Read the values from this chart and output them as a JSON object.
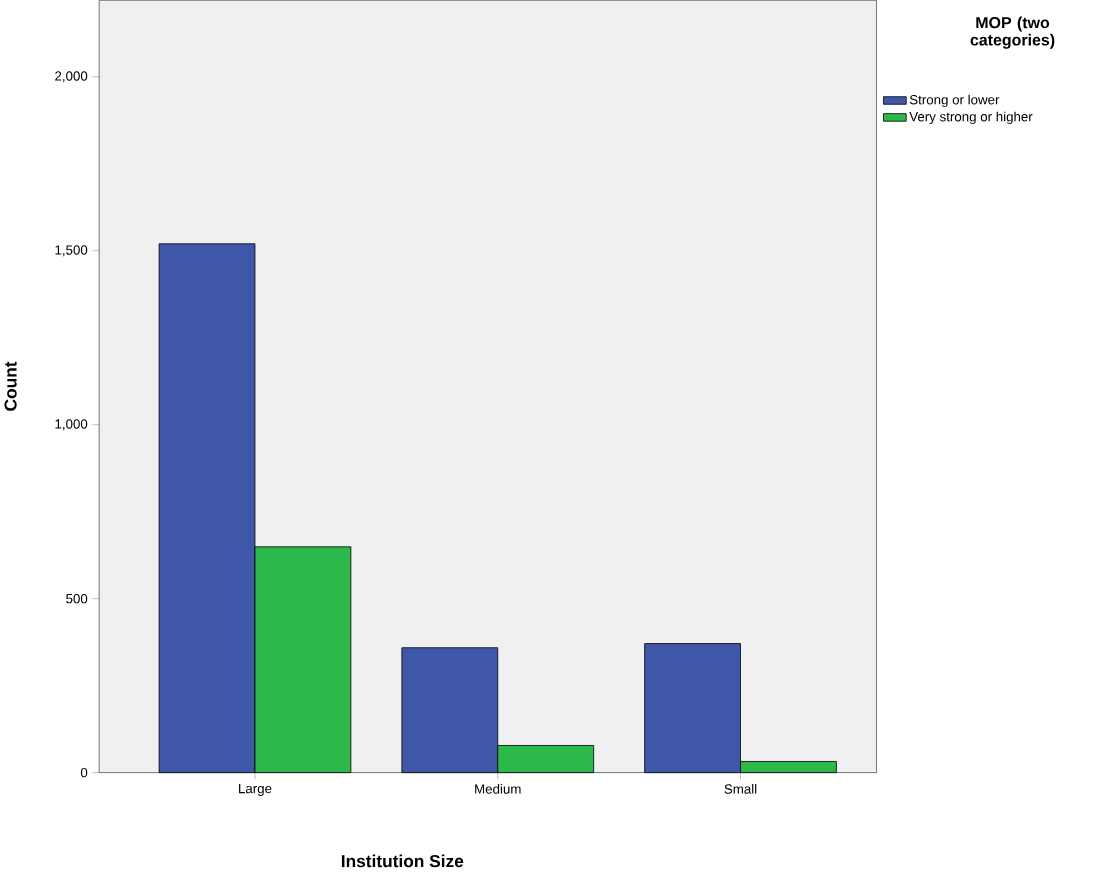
{
  "chart_data": {
    "type": "bar",
    "xlabel": "Institution Size",
    "ylabel": "Count",
    "legend_title": "MOP (two categories)",
    "categories": [
      "Large",
      "Medium",
      "Small"
    ],
    "series": [
      {
        "name": "Strong or lower",
        "color": "#3f57a8",
        "values": [
          1520,
          359,
          371
        ]
      },
      {
        "name": "Very strong or higher",
        "color": "#2db84a",
        "values": [
          649,
          78,
          32
        ]
      }
    ],
    "ylim": [
      0,
      2220
    ],
    "yticks": [
      0,
      500,
      {
        "value": 1000,
        "label": "1,000"
      },
      {
        "value": 1500,
        "label": "1,500"
      },
      {
        "value": 2000,
        "label": "2,000"
      }
    ],
    "grid": false,
    "legend": "right"
  }
}
